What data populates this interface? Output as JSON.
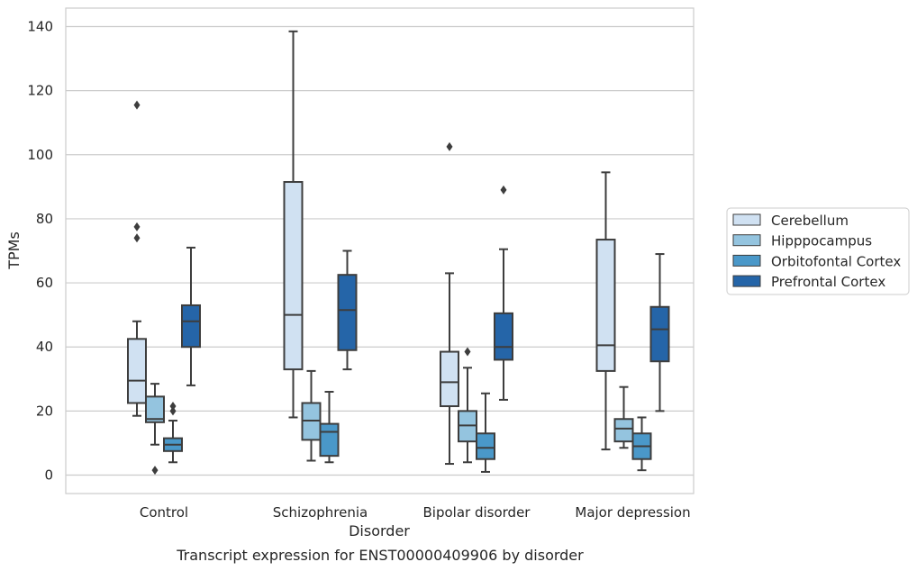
{
  "caption": "Transcript expression for ENST00000409906 by disorder",
  "chart_data": {
    "type": "box",
    "xlabel": "Disorder",
    "ylabel": "TPMs",
    "ylim": [
      -6,
      146
    ],
    "yticks": [
      0,
      20,
      40,
      60,
      80,
      100,
      120,
      140
    ],
    "grid": "horizontal",
    "legend_position": "right",
    "categories": [
      "Control",
      "Schizophrenia",
      "Bipolar disorder",
      "Major depression"
    ],
    "series": [
      {
        "name": "Cerebellum",
        "color": "#d0e1f2",
        "boxes": [
          {
            "whisker_low": 18.5,
            "q1": 22.5,
            "median": 29.5,
            "q3": 42.5,
            "whisker_high": 48,
            "outliers": [
              74,
              77.5,
              115.5
            ]
          },
          {
            "whisker_low": 18,
            "q1": 33,
            "median": 50,
            "q3": 91.5,
            "whisker_high": 138.5,
            "outliers": []
          },
          {
            "whisker_low": 3.5,
            "q1": 21.5,
            "median": 29,
            "q3": 38.5,
            "whisker_high": 63,
            "outliers": [
              102.5
            ]
          },
          {
            "whisker_low": 8,
            "q1": 32.5,
            "median": 40.5,
            "q3": 73.5,
            "whisker_high": 94.5,
            "outliers": []
          }
        ]
      },
      {
        "name": "Hipppocampus",
        "color": "#94c4df",
        "boxes": [
          {
            "whisker_low": 9.5,
            "q1": 16.5,
            "median": 17.5,
            "q3": 24.5,
            "whisker_high": 28.5,
            "outliers": [
              1.5
            ]
          },
          {
            "whisker_low": 4.5,
            "q1": 11,
            "median": 17,
            "q3": 22.5,
            "whisker_high": 32.5,
            "outliers": []
          },
          {
            "whisker_low": 4,
            "q1": 10.5,
            "median": 15.5,
            "q3": 20,
            "whisker_high": 33.5,
            "outliers": [
              38.5
            ]
          },
          {
            "whisker_low": 8.5,
            "q1": 10.5,
            "median": 14.5,
            "q3": 17.5,
            "whisker_high": 27.5,
            "outliers": []
          }
        ]
      },
      {
        "name": "Orbitofontal Cortex",
        "color": "#4a98c9",
        "boxes": [
          {
            "whisker_low": 4,
            "q1": 7.5,
            "median": 9.5,
            "q3": 11.5,
            "whisker_high": 17,
            "outliers": [
              20,
              21.5
            ]
          },
          {
            "whisker_low": 4,
            "q1": 6,
            "median": 13.5,
            "q3": 16,
            "whisker_high": 26,
            "outliers": []
          },
          {
            "whisker_low": 1,
            "q1": 5,
            "median": 8.5,
            "q3": 13,
            "whisker_high": 25.5,
            "outliers": []
          },
          {
            "whisker_low": 1.5,
            "q1": 5,
            "median": 9,
            "q3": 13,
            "whisker_high": 18,
            "outliers": []
          }
        ]
      },
      {
        "name": "Prefrontal Cortex",
        "color": "#2565a8",
        "boxes": [
          {
            "whisker_low": 28,
            "q1": 40,
            "median": 48,
            "q3": 53,
            "whisker_high": 71,
            "outliers": []
          },
          {
            "whisker_low": 33,
            "q1": 39,
            "median": 51.5,
            "q3": 62.5,
            "whisker_high": 70,
            "outliers": []
          },
          {
            "whisker_low": 23.5,
            "q1": 36,
            "median": 40,
            "q3": 50.5,
            "whisker_high": 70.5,
            "outliers": [
              89
            ]
          },
          {
            "whisker_low": 20,
            "q1": 35.5,
            "median": 45.5,
            "q3": 52.5,
            "whisker_high": 69,
            "outliers": []
          }
        ]
      }
    ]
  }
}
